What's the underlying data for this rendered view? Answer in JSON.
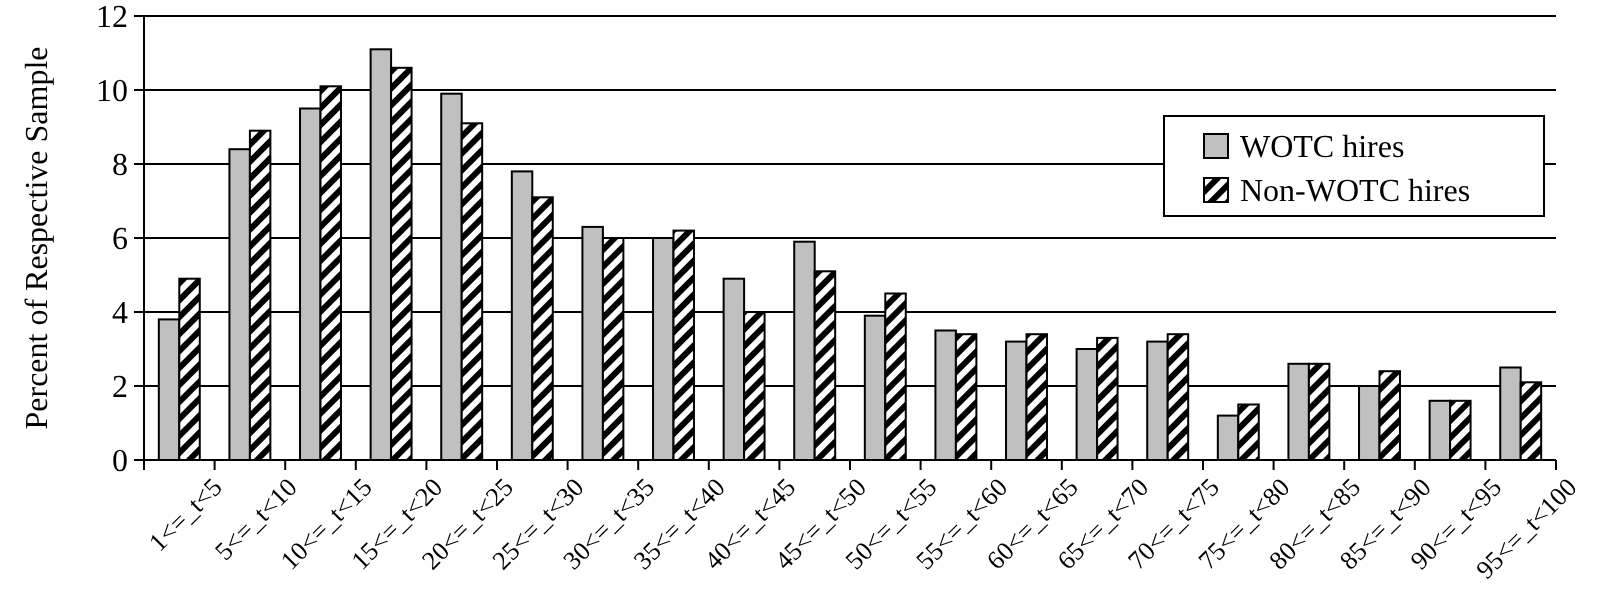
{
  "chart_data": {
    "type": "bar",
    "ylabel": "Percent of Respective Sample",
    "categories": [
      "1<=_t<5",
      "5<=_t<10",
      "10<=_t<15",
      "15<=_t<20",
      "20<=_t<25",
      "25<=_t<30",
      "30<=_t<35",
      "35<=_t<40",
      "40<=_t<45",
      "45<=_t<50",
      "50<=_t<55",
      "55<=_t<60",
      "60<=_t<65",
      "65<=_t<70",
      "70<=_t<75",
      "75<=_t<80",
      "80<=_t<85",
      "85<=_t<90",
      "90<=_t<95",
      "95<=_t<100"
    ],
    "series": [
      {
        "name": "WOTC hires",
        "color": "#c0c0c0",
        "values": [
          3.8,
          8.4,
          9.5,
          11.1,
          9.9,
          7.8,
          6.3,
          6.0,
          4.9,
          5.9,
          3.9,
          3.5,
          3.2,
          3.0,
          3.2,
          1.2,
          2.6,
          2.0,
          1.6,
          2.5
        ]
      },
      {
        "name": "Non-WOTC hires",
        "color": "#000000",
        "values": [
          4.9,
          8.9,
          10.1,
          10.6,
          9.1,
          7.1,
          6.0,
          6.2,
          4.0,
          5.1,
          4.5,
          3.4,
          3.4,
          3.3,
          3.4,
          1.5,
          2.6,
          2.4,
          1.6,
          2.1
        ]
      }
    ],
    "ylim": [
      0,
      12
    ],
    "yticks": [
      0,
      2,
      4,
      6,
      8,
      10,
      12
    ],
    "grid": "y",
    "legend": "top right"
  }
}
